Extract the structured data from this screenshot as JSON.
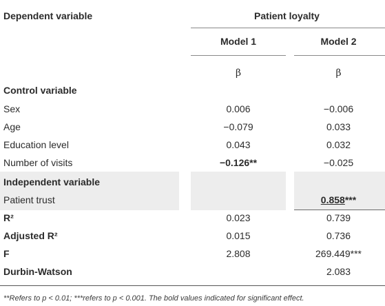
{
  "header": {
    "dependent_label": "Dependent variable",
    "group_label": "Patient loyalty",
    "model1": "Model 1",
    "model2": "Model 2",
    "beta1": "β",
    "beta2": "β"
  },
  "sections": {
    "control": "Control variable",
    "independent": "Independent variable"
  },
  "rows": {
    "sex": {
      "label": "Sex",
      "m1": "0.006",
      "m2": "−0.006"
    },
    "age": {
      "label": "Age",
      "m1": "−0.079",
      "m2": "0.033"
    },
    "education": {
      "label": "Education level",
      "m1": "0.043",
      "m2": "0.032"
    },
    "visits": {
      "label": "Number of visits",
      "m1": "−0.126**",
      "m2": "−0.025"
    },
    "trust": {
      "label": "Patient trust",
      "m1": "",
      "m2_value": "0.858",
      "m2_stars": "***"
    },
    "r2": {
      "label": "R²",
      "m1": "0.023",
      "m2": "0.739"
    },
    "adj_r2": {
      "label": "Adjusted R²",
      "m1": "0.015",
      "m2": "0.736"
    },
    "f": {
      "label": "F",
      "m1": "2.808",
      "m2": "269.449***"
    },
    "dw": {
      "label": "Durbin-Watson",
      "m1": "",
      "m2": "2.083"
    }
  },
  "footnote": "**Refers to p < 0.01; ***refers to p < 0.001. The bold values indicated for significant effect."
}
